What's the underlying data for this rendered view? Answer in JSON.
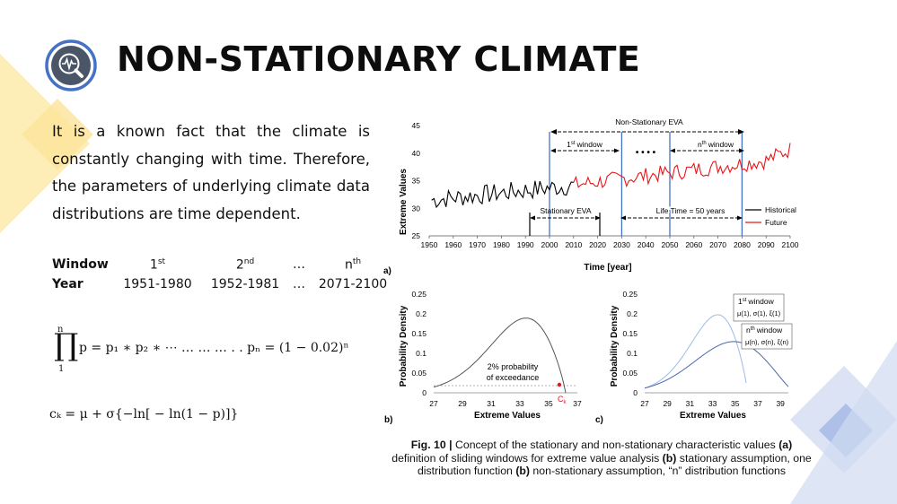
{
  "header": {
    "title": "NON-STATIONARY CLIMATE"
  },
  "intro": {
    "text": "It is a known fact that the climate is constantly changing with time. Therefore, the parameters of underlying climate data distributions are time dependent."
  },
  "window_table": {
    "header_label": "Window",
    "year_label": "Year",
    "col1": "1",
    "col1_sup": "st",
    "col2": "2",
    "col2_sup": "nd",
    "ellipsis": "…",
    "col4": "n",
    "col4_sup": "th",
    "year1": "1951-1980",
    "year2": "1952-1981",
    "year4": "2071-2100"
  },
  "equations": {
    "product_upper": "n",
    "product_lower": "1",
    "product_body": "p = p₁ ∗ p₂ ∗ ⋯ … … … . . pₙ = (1 − 0.02)ⁿ",
    "characteristic_value": "cₖ = μ + σ{−ln[ − ln(1 − p)]}"
  },
  "figure": {
    "panel_a": {
      "label": "a)",
      "ylabel": "Extreme Values",
      "xlabel": "Time [year]",
      "yticks": [
        "45",
        "40",
        "35",
        "30",
        "25"
      ],
      "xticks": [
        "1950",
        "1960",
        "1970",
        "1980",
        "1990",
        "2000",
        "2010",
        "2020",
        "2030",
        "2040",
        "2050",
        "2060",
        "2070",
        "2080",
        "2090",
        "2100"
      ],
      "nonstationary_label": "Non-Stationary EVA",
      "first_window": "1",
      "first_window_sup": "st",
      "first_window_word": "window",
      "nth_window": "n",
      "nth_window_sup": "th",
      "nth_window_word": "window",
      "dots": "• • • •",
      "stationary_label": "Stationary EVA",
      "lifetime_label": "Life Time = 50 years",
      "legend_historical": "Historical",
      "legend_future": "Future",
      "color_historical": "#000000",
      "color_future": "#e8161b",
      "color_window_lines": "#4472c4"
    },
    "panel_b": {
      "label": "b)",
      "ylabel": "Probability Density",
      "xlabel": "Extreme Values",
      "yticks": [
        "0.25",
        "0.2",
        "0.15",
        "0.1",
        "0.05",
        "0"
      ],
      "xticks": [
        "27",
        "29",
        "31",
        "33",
        "35",
        "37"
      ],
      "annotation_line1": "2% probability",
      "annotation_line2": "of exceedance",
      "ck_label": "C",
      "ck_sub": "k"
    },
    "panel_c": {
      "label": "c)",
      "ylabel": "Probability Density",
      "xlabel": "Extreme Values",
      "yticks": [
        "0.25",
        "0.2",
        "0.15",
        "0.1",
        "0.05",
        "0"
      ],
      "xticks": [
        "27",
        "29",
        "31",
        "33",
        "35",
        "37",
        "39"
      ],
      "box1_title_n": "1",
      "box1_title_sup": "st",
      "box1_title_word": "window",
      "box1_params": "μ(1), σ(1), ξ(1)",
      "box2_title_n": "n",
      "box2_title_sup": "th",
      "box2_title_word": "window",
      "box2_params": "μ(n), σ(n), ξ(n)"
    },
    "caption": {
      "fig_label": "Fig. 10 |",
      "t1": " Concept of the stationary and non-stationary characteristic values ",
      "a": "(a)",
      "t2": " definition of sliding windows for extreme value analysis ",
      "b1": "(b)",
      "t3": " stationary assumption, one distribution function ",
      "b2": "(b)",
      "t4": " non-stationary assumption, “n” distribution functions"
    }
  },
  "colors": {
    "accent_blue": "#4472c4",
    "deco_yellow": "#fde8a6",
    "deco_blue": "#c6d3ef"
  }
}
